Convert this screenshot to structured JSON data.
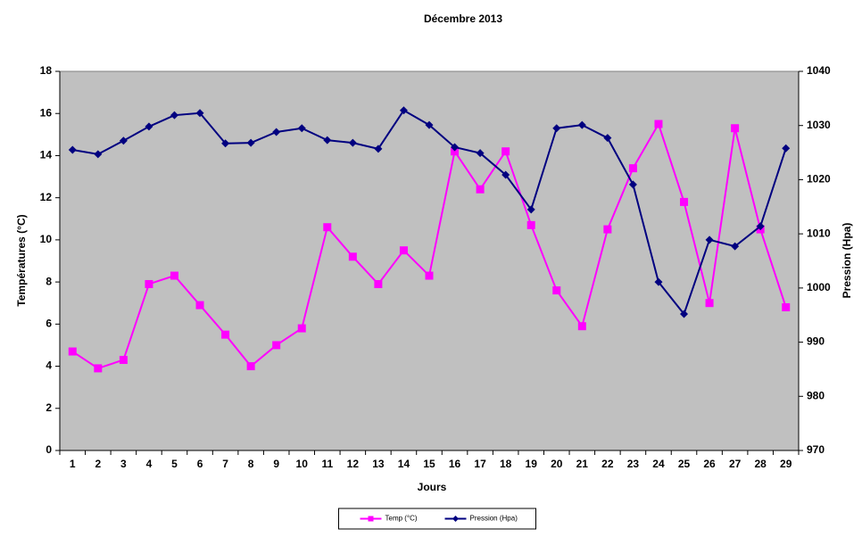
{
  "chart_data": {
    "type": "line",
    "title": "Décembre 2013",
    "x_label": "Jours",
    "y_label": "Températures (°C)",
    "y2_label": "Pression (Hpa)",
    "categories": [
      "1",
      "2",
      "3",
      "4",
      "5",
      "6",
      "7",
      "8",
      "9",
      "10",
      "11",
      "12",
      "13",
      "14",
      "15",
      "16",
      "17",
      "18",
      "19",
      "20",
      "21",
      "22",
      "23",
      "24",
      "25",
      "26",
      "27",
      "28",
      "29"
    ],
    "series": [
      {
        "name": "Temp (°C)",
        "color": "#ff00ff",
        "marker": "square",
        "values": [
          4.7,
          3.9,
          4.3,
          7.9,
          8.3,
          6.9,
          5.5,
          4.0,
          5.0,
          5.8,
          10.6,
          9.2,
          7.9,
          9.5,
          8.3,
          14.2,
          12.4,
          14.2,
          10.7,
          7.6,
          5.9,
          10.5,
          13.4,
          15.5,
          11.8,
          7.0,
          15.3,
          10.5,
          6.8
        ]
      },
      {
        "name": "Pression (Hpa)",
        "color": "#000080",
        "marker": "diamond",
        "axis": "y2",
        "values": [
          1025.5,
          1024.7,
          1027.2,
          1029.8,
          1031.9,
          1032.3,
          1026.7,
          1026.8,
          1028.8,
          1029.5,
          1027.3,
          1026.8,
          1025.7,
          1032.8,
          1030.1,
          1026.0,
          1024.9,
          1020.9,
          1014.5,
          1029.5,
          1030.1,
          1027.7,
          1019.1,
          1001.1,
          995.2,
          1008.9,
          1007.7,
          1011.4,
          1025.8
        ]
      }
    ],
    "ylim": [
      0,
      18
    ],
    "yticks": [
      0,
      2,
      4,
      6,
      8,
      10,
      12,
      14,
      16,
      18
    ],
    "y2lim": [
      970,
      1040
    ],
    "y2ticks": [
      970,
      980,
      990,
      1000,
      1010,
      1020,
      1030,
      1040
    ],
    "plot_background": "#c0c0c0",
    "grid": false,
    "legend": "bottom"
  }
}
